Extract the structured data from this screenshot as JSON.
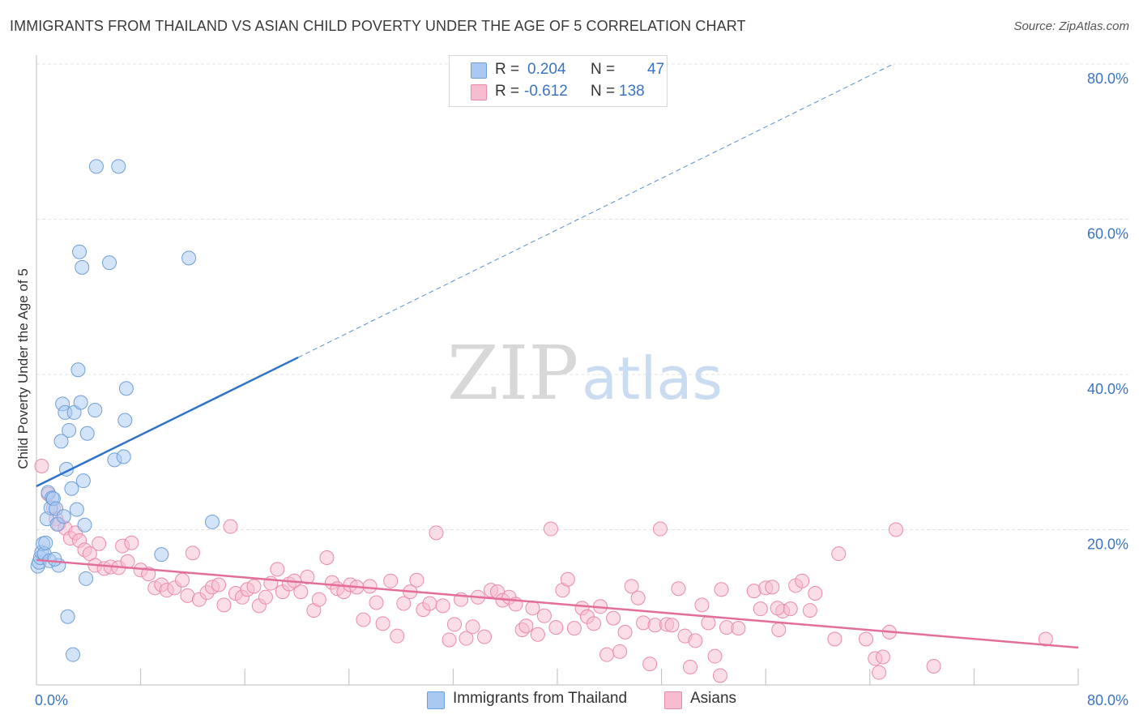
{
  "title": "IMMIGRANTS FROM THAILAND VS ASIAN CHILD POVERTY UNDER THE AGE OF 5 CORRELATION CHART",
  "source": "Source: ZipAtlas.com",
  "watermark": {
    "zip": "ZIP",
    "atlas": "atlas"
  },
  "legend": {
    "r_label": "R =",
    "n_label": "N =",
    "rows": [
      {
        "r": "0.204",
        "n": "47",
        "color": "#a9c9f2"
      },
      {
        "r": "-0.612",
        "n": "138",
        "color": "#f7bcd0"
      }
    ]
  },
  "bottom_legend": [
    {
      "label": "Immigrants from Thailand",
      "color": "#a9c9f2"
    },
    {
      "label": "Asians",
      "color": "#f7bcd0"
    }
  ],
  "colors": {
    "blue_fill": "#a9c9f2",
    "blue_stroke": "#6e9fd9",
    "blue_line": "#2f74c9",
    "pink_fill": "#f7bcd0",
    "pink_stroke": "#eb8aab",
    "pink_line": "#e46e9a",
    "tick_color": "#3a74c4",
    "grid": "#e3e3e3"
  },
  "chart_data": {
    "type": "scatter",
    "title": "IMMIGRANTS FROM THAILAND VS ASIAN CHILD POVERTY UNDER THE AGE OF 5 CORRELATION CHART",
    "xlabel": "",
    "ylabel": "Child Poverty Under the Age of 5",
    "xlim": [
      0,
      80
    ],
    "ylim": [
      0,
      80
    ],
    "x_ticks": [
      "0.0%",
      "80.0%"
    ],
    "y_ticks": [
      {
        "value": 20,
        "label": "20.0%"
      },
      {
        "value": 40,
        "label": "40.0%"
      },
      {
        "value": 60,
        "label": "60.0%"
      },
      {
        "value": 80,
        "label": "80.0%"
      }
    ],
    "grid": true,
    "legend_position": "top-center",
    "series": [
      {
        "name": "Immigrants from Thailand",
        "r": 0.204,
        "n": 47,
        "trend": {
          "x0": 0,
          "y0": 25.6,
          "x1": 20.1,
          "y1": 42.2,
          "dashed_to": {
            "x": 65.8,
            "y": 80.0
          }
        },
        "points": [
          [
            0.1,
            15.3
          ],
          [
            0.2,
            15.8
          ],
          [
            0.3,
            16.4
          ],
          [
            0.4,
            17.1
          ],
          [
            0.5,
            18.2
          ],
          [
            0.6,
            16.9
          ],
          [
            0.8,
            21.4
          ],
          [
            0.9,
            24.8
          ],
          [
            1.0,
            16.0
          ],
          [
            1.1,
            22.8
          ],
          [
            1.2,
            24.1
          ],
          [
            1.3,
            24.0
          ],
          [
            1.5,
            22.7
          ],
          [
            1.6,
            20.7
          ],
          [
            1.7,
            15.4
          ],
          [
            1.9,
            31.4
          ],
          [
            2.0,
            36.2
          ],
          [
            2.2,
            35.1
          ],
          [
            2.3,
            27.8
          ],
          [
            2.4,
            8.8
          ],
          [
            2.5,
            32.8
          ],
          [
            2.7,
            25.3
          ],
          [
            2.8,
            3.9
          ],
          [
            2.9,
            35.1
          ],
          [
            3.1,
            22.6
          ],
          [
            3.2,
            40.6
          ],
          [
            3.3,
            55.8
          ],
          [
            3.4,
            36.4
          ],
          [
            3.5,
            53.8
          ],
          [
            3.6,
            26.3
          ],
          [
            3.7,
            20.6
          ],
          [
            3.8,
            13.7
          ],
          [
            3.9,
            32.4
          ],
          [
            4.5,
            35.4
          ],
          [
            4.6,
            66.8
          ],
          [
            5.6,
            54.4
          ],
          [
            6.0,
            29.0
          ],
          [
            6.3,
            66.8
          ],
          [
            6.7,
            29.4
          ],
          [
            6.8,
            34.1
          ],
          [
            6.9,
            38.2
          ],
          [
            9.6,
            16.8
          ],
          [
            11.7,
            55.0
          ],
          [
            13.5,
            21.0
          ],
          [
            1.4,
            16.2
          ],
          [
            0.7,
            18.3
          ],
          [
            2.1,
            21.7
          ]
        ]
      },
      {
        "name": "Asians",
        "r": -0.612,
        "n": 138,
        "trend": {
          "x0": 0,
          "y0": 16.1,
          "x1": 80,
          "y1": 4.8
        },
        "points": [
          [
            0.4,
            28.2
          ],
          [
            0.9,
            24.6
          ],
          [
            1.3,
            22.8
          ],
          [
            1.5,
            21.4
          ],
          [
            1.7,
            20.7
          ],
          [
            2.2,
            20.2
          ],
          [
            2.6,
            18.9
          ],
          [
            3.0,
            19.6
          ],
          [
            3.3,
            18.6
          ],
          [
            3.7,
            17.4
          ],
          [
            4.1,
            16.9
          ],
          [
            4.5,
            15.4
          ],
          [
            4.8,
            18.2
          ],
          [
            5.2,
            15.0
          ],
          [
            5.7,
            15.2
          ],
          [
            6.3,
            15.1
          ],
          [
            6.6,
            17.9
          ],
          [
            7.0,
            15.9
          ],
          [
            7.3,
            18.3
          ],
          [
            8.0,
            14.8
          ],
          [
            8.6,
            14.3
          ],
          [
            9.1,
            12.5
          ],
          [
            9.6,
            12.9
          ],
          [
            10.0,
            12.2
          ],
          [
            10.6,
            12.5
          ],
          [
            11.2,
            13.5
          ],
          [
            11.6,
            11.5
          ],
          [
            12.0,
            17.0
          ],
          [
            12.5,
            11.0
          ],
          [
            13.1,
            11.9
          ],
          [
            13.5,
            12.6
          ],
          [
            14.0,
            12.9
          ],
          [
            14.4,
            10.3
          ],
          [
            14.9,
            20.4
          ],
          [
            15.3,
            11.8
          ],
          [
            15.8,
            11.3
          ],
          [
            16.2,
            12.3
          ],
          [
            16.7,
            12.7
          ],
          [
            17.1,
            10.2
          ],
          [
            17.6,
            11.3
          ],
          [
            18.0,
            13.1
          ],
          [
            18.5,
            14.9
          ],
          [
            18.9,
            12.0
          ],
          [
            19.4,
            13.0
          ],
          [
            19.8,
            13.4
          ],
          [
            20.3,
            12.0
          ],
          [
            20.8,
            13.9
          ],
          [
            21.3,
            9.6
          ],
          [
            21.7,
            11.0
          ],
          [
            22.3,
            16.4
          ],
          [
            22.7,
            13.2
          ],
          [
            23.1,
            12.4
          ],
          [
            23.6,
            12.0
          ],
          [
            24.1,
            12.9
          ],
          [
            24.6,
            12.6
          ],
          [
            25.1,
            8.4
          ],
          [
            25.6,
            12.7
          ],
          [
            26.1,
            10.6
          ],
          [
            26.6,
            7.9
          ],
          [
            27.2,
            13.4
          ],
          [
            27.7,
            6.3
          ],
          [
            28.2,
            10.5
          ],
          [
            28.7,
            12.0
          ],
          [
            29.2,
            13.5
          ],
          [
            29.7,
            9.7
          ],
          [
            30.2,
            10.5
          ],
          [
            30.7,
            19.6
          ],
          [
            31.2,
            10.2
          ],
          [
            31.7,
            5.8
          ],
          [
            32.1,
            7.8
          ],
          [
            32.6,
            11.0
          ],
          [
            33.0,
            6.0
          ],
          [
            33.5,
            7.5
          ],
          [
            33.9,
            11.3
          ],
          [
            34.4,
            6.2
          ],
          [
            34.9,
            12.2
          ],
          [
            35.4,
            12.0
          ],
          [
            35.8,
            10.9
          ],
          [
            36.3,
            11.3
          ],
          [
            36.8,
            10.4
          ],
          [
            37.3,
            7.1
          ],
          [
            37.6,
            7.6
          ],
          [
            38.1,
            9.9
          ],
          [
            38.5,
            6.5
          ],
          [
            39.0,
            8.9
          ],
          [
            39.5,
            20.1
          ],
          [
            39.9,
            7.4
          ],
          [
            40.4,
            12.2
          ],
          [
            40.8,
            13.6
          ],
          [
            41.3,
            7.3
          ],
          [
            41.9,
            9.9
          ],
          [
            42.3,
            8.8
          ],
          [
            42.8,
            7.9
          ],
          [
            43.3,
            10.1
          ],
          [
            43.8,
            3.9
          ],
          [
            44.3,
            8.6
          ],
          [
            44.8,
            4.3
          ],
          [
            45.2,
            6.8
          ],
          [
            45.7,
            12.7
          ],
          [
            46.2,
            11.2
          ],
          [
            46.6,
            8.0
          ],
          [
            47.1,
            2.7
          ],
          [
            47.5,
            7.7
          ],
          [
            47.9,
            20.1
          ],
          [
            48.4,
            7.8
          ],
          [
            48.8,
            7.7
          ],
          [
            49.3,
            12.4
          ],
          [
            49.8,
            6.3
          ],
          [
            50.2,
            2.3
          ],
          [
            50.6,
            5.7
          ],
          [
            51.1,
            10.3
          ],
          [
            51.6,
            8.0
          ],
          [
            52.1,
            3.7
          ],
          [
            52.5,
            1.2
          ],
          [
            53.0,
            7.4
          ],
          [
            53.9,
            7.3
          ],
          [
            55.1,
            12.1
          ],
          [
            55.6,
            9.8
          ],
          [
            56.0,
            12.5
          ],
          [
            56.5,
            12.6
          ],
          [
            57.0,
            7.1
          ],
          [
            57.3,
            9.5
          ],
          [
            57.9,
            9.8
          ],
          [
            58.3,
            12.8
          ],
          [
            58.8,
            13.4
          ],
          [
            59.4,
            9.6
          ],
          [
            59.8,
            11.8
          ],
          [
            61.3,
            5.9
          ],
          [
            61.6,
            16.9
          ],
          [
            63.7,
            5.9
          ],
          [
            64.4,
            3.4
          ],
          [
            64.7,
            1.6
          ],
          [
            65.0,
            3.6
          ],
          [
            65.5,
            6.8
          ],
          [
            66.0,
            20.0
          ],
          [
            68.9,
            2.4
          ],
          [
            77.5,
            5.9
          ],
          [
            52.6,
            12.3
          ],
          [
            56.9,
            9.9
          ]
        ]
      }
    ]
  }
}
